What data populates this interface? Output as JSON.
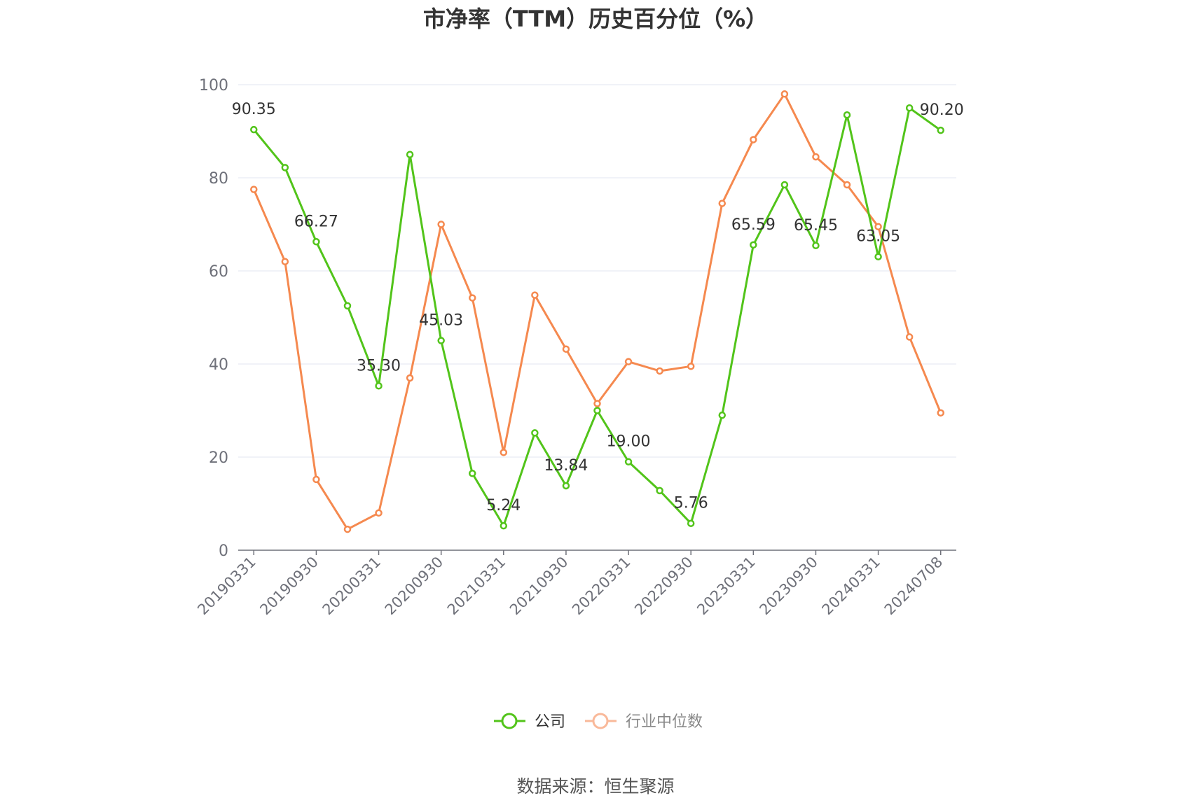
{
  "source": "数据来源：恒生聚源",
  "colors": {
    "company": "#52c41a",
    "industry": "#f5894f",
    "industry_legend_icon": "#f9b99a",
    "grid": "#e0e6f1",
    "axis": "#6e7079"
  },
  "chart_data": {
    "type": "line",
    "title": "市净率（TTM）历史百分位（%）",
    "xlabel": "",
    "ylabel": "",
    "ylim": [
      0,
      100
    ],
    "yticks": [
      0,
      20,
      40,
      60,
      80,
      100
    ],
    "grid": true,
    "legend_position": "bottom-center",
    "x": [
      "20190331",
      "20190630",
      "20190930",
      "20191231",
      "20200331",
      "20200630",
      "20200930",
      "20201231",
      "20210331",
      "20210630",
      "20210930",
      "20211231",
      "20220331",
      "20220630",
      "20220930",
      "20221231",
      "20230331",
      "20230630",
      "20230930",
      "20231231",
      "20240331",
      "20240630",
      "20240708"
    ],
    "x_tick_labels": [
      "20190331",
      "20190930",
      "20200331",
      "20200930",
      "20210331",
      "20210930",
      "20220331",
      "20220930",
      "20230331",
      "20230930",
      "20240331",
      "20240708"
    ],
    "series": [
      {
        "name": "公司",
        "values": [
          90.35,
          82.2,
          66.27,
          52.5,
          35.3,
          85.0,
          45.03,
          16.5,
          5.24,
          25.2,
          13.84,
          30.0,
          19.0,
          12.8,
          5.76,
          29.0,
          65.59,
          78.5,
          65.45,
          93.5,
          63.05,
          95.0,
          90.2
        ],
        "labels": [
          "90.35",
          "",
          "66.27",
          "",
          "35.30",
          "",
          "45.03",
          "",
          "5.24",
          "",
          "13.84",
          "",
          "19.00",
          "",
          "5.76",
          "",
          "65.59",
          "",
          "65.45",
          "",
          "63.05",
          "",
          "90.20"
        ]
      },
      {
        "name": "行业中位数",
        "values": [
          77.5,
          62.0,
          15.2,
          4.5,
          8.0,
          37.0,
          70.0,
          54.2,
          21.0,
          54.8,
          43.2,
          31.5,
          40.5,
          38.5,
          39.5,
          74.5,
          88.2,
          98.0,
          84.5,
          78.5,
          69.5,
          45.8,
          29.5
        ],
        "labels": []
      }
    ]
  }
}
